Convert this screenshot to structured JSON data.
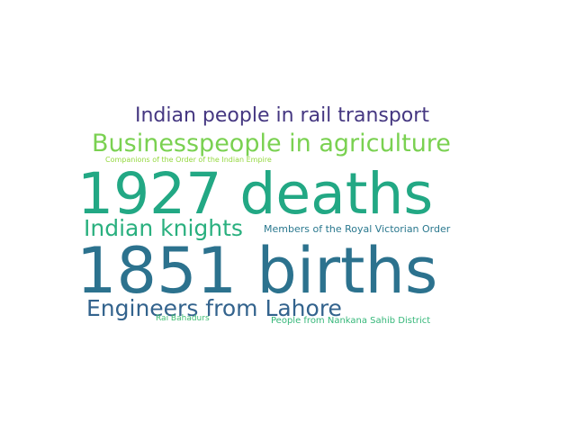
{
  "words": {
    "indian_rail": {
      "text": "Indian people in rail transport",
      "color": "#453781"
    },
    "businesspeople": {
      "text": "Businesspeople in agriculture",
      "color": "#7ad151"
    },
    "companions": {
      "text": "Companions of the Order of the Indian Empire",
      "color": "#95d840"
    },
    "deaths_1927": {
      "text": "1927 deaths",
      "color": "#22a884"
    },
    "indian_knights": {
      "text": "Indian knights",
      "color": "#2ab07f"
    },
    "royal_victorian": {
      "text": "Members of the Royal Victorian Order",
      "color": "#2a788e"
    },
    "births_1851": {
      "text": "1851 births",
      "color": "#2c728e"
    },
    "engineers_lahore": {
      "text": "Engineers from Lahore",
      "color": "#33638d"
    },
    "rai_bahadurs": {
      "text": "Rai Bahadurs",
      "color": "#3fbc73"
    },
    "nankana": {
      "text": "People from Nankana Sahib District",
      "color": "#35b779"
    }
  }
}
